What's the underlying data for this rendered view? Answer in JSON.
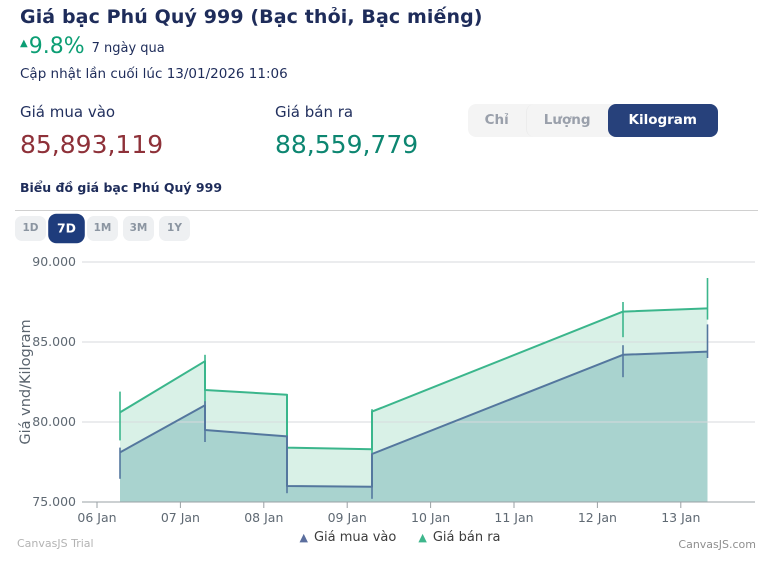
{
  "header": {
    "title": "Giá bạc Phú Quý 999 (Bạc thỏi, Bạc miếng)",
    "up_arrow": "▲",
    "change_percent": "9.8%",
    "change_period": "7 ngày qua",
    "updated": "Cập nhật lần cuối lúc 13/01/2026 11:06"
  },
  "prices": {
    "buy_label": "Giá mua vào",
    "buy_value": "85,893,119",
    "sell_label": "Giá bán ra",
    "sell_value": "88,559,779"
  },
  "unit_toggle": {
    "options": [
      "Chỉ",
      "Lượng",
      "Kilogram"
    ],
    "selected": "Kilogram"
  },
  "chart_heading": "Biểu đồ giá bạc Phú Quý 999",
  "range_buttons": {
    "options": [
      "1D",
      "7D",
      "1M",
      "3M",
      "1Y"
    ],
    "selected": "7D"
  },
  "watermarks": {
    "left": "CanvasJS Trial",
    "right": "CanvasJS.com"
  },
  "colors": {
    "navy_text": "#1e2c5a",
    "change_green": "#0c9e74",
    "buy_value_red": "#8e3139",
    "sell_value_teal": "#0d8671",
    "active_button_navy": "#1e3c7c",
    "grid": "#d7dadc",
    "axis": "#9aa0a4",
    "tick_label": "#5f6973"
  },
  "chart_data": {
    "type": "area",
    "title": "",
    "xlabel": "",
    "ylabel": "Giá vnd/Kilogram",
    "ylim": [
      75000,
      90000
    ],
    "grid": true,
    "legend_position": "bottom",
    "y_ticks": [
      {
        "value": 90000,
        "label": "90.000"
      },
      {
        "value": 85000,
        "label": "85.000"
      },
      {
        "value": 80000,
        "label": "80.000"
      },
      {
        "value": 75000,
        "label": "75.000"
      }
    ],
    "x_ticks": [
      {
        "day": 0,
        "label": "06 Jan"
      },
      {
        "day": 1,
        "label": "07 Jan"
      },
      {
        "day": 2,
        "label": "08 Jan"
      },
      {
        "day": 3,
        "label": "09 Jan"
      },
      {
        "day": 4,
        "label": "10 Jan"
      },
      {
        "day": 5,
        "label": "11 Jan"
      },
      {
        "day": 6,
        "label": "12 Jan"
      },
      {
        "day": 7,
        "label": "13 Jan"
      }
    ],
    "legend": [
      {
        "label": "Giá mua vào",
        "color": "#5b6e9e"
      },
      {
        "label": "Giá bán ra",
        "color": "#3eb68c"
      }
    ],
    "series": [
      {
        "name": "Giá bán ra",
        "line_color": "#3bb68c",
        "fill_color": "#d9f1e7",
        "points": [
          [
            0.276,
            80600
          ],
          [
            1.295,
            83800
          ],
          [
            1.295,
            82000
          ],
          [
            2.278,
            81700
          ],
          [
            2.278,
            78400
          ],
          [
            3.297,
            78300
          ],
          [
            3.297,
            80650
          ],
          [
            6.307,
            86900
          ],
          [
            7.32,
            87100
          ]
        ],
        "wicks": [
          [
            0.276,
            81900,
            78850
          ],
          [
            1.295,
            84200,
            81100
          ],
          [
            2.278,
            81700,
            78400
          ],
          [
            3.297,
            80800,
            77800
          ],
          [
            6.307,
            87500,
            85300
          ],
          [
            7.32,
            89000,
            86400
          ]
        ]
      },
      {
        "name": "Giá mua vào",
        "line_color": "#54779e",
        "fill_color": "#a9d3cf",
        "points": [
          [
            0.276,
            78100
          ],
          [
            1.295,
            81050
          ],
          [
            1.295,
            79500
          ],
          [
            2.278,
            79100
          ],
          [
            2.278,
            76000
          ],
          [
            3.297,
            75950
          ],
          [
            3.297,
            78000
          ],
          [
            6.307,
            84200
          ],
          [
            7.32,
            84400
          ]
        ],
        "wicks": [
          [
            0.276,
            78400,
            76450
          ],
          [
            1.295,
            81300,
            78750
          ],
          [
            2.278,
            79100,
            75550
          ],
          [
            3.297,
            78000,
            75200
          ],
          [
            6.307,
            84800,
            82800
          ],
          [
            7.32,
            86100,
            84000
          ]
        ]
      }
    ]
  }
}
